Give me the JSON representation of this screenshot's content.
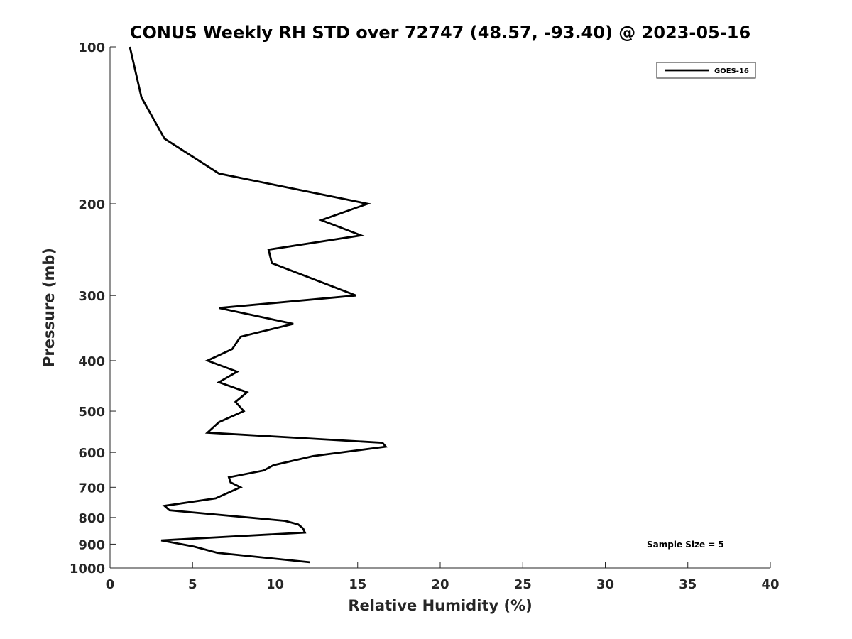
{
  "chart_data": {
    "type": "line",
    "title": "CONUS Weekly RH STD over 72747 (48.57, -93.40) @ 2023-05-16",
    "xlabel": "Relative Humidity (%)",
    "ylabel": "Pressure (mb)",
    "xlim": [
      0,
      40
    ],
    "ylim": [
      100,
      1000
    ],
    "y_scale": "log",
    "y_reversed": true,
    "x_ticks": [
      0,
      5,
      10,
      15,
      20,
      25,
      30,
      35,
      40
    ],
    "y_ticks": [
      100,
      200,
      300,
      400,
      500,
      600,
      700,
      800,
      900,
      1000
    ],
    "grid": false,
    "legend_position": "top-right",
    "annotation": "Sample Size = 5",
    "series": [
      {
        "name": "GOES-16",
        "color": "#000000",
        "points": [
          [
            1.2,
            100
          ],
          [
            1.9,
            125
          ],
          [
            3.3,
            150
          ],
          [
            6.6,
            175
          ],
          [
            15.6,
            200
          ],
          [
            12.8,
            215
          ],
          [
            15.2,
            230
          ],
          [
            9.6,
            245
          ],
          [
            9.8,
            260
          ],
          [
            14.9,
            300
          ],
          [
            6.6,
            317
          ],
          [
            11.1,
            340
          ],
          [
            7.9,
            360
          ],
          [
            7.4,
            380
          ],
          [
            5.9,
            400
          ],
          [
            7.7,
            420
          ],
          [
            6.6,
            440
          ],
          [
            8.3,
            460
          ],
          [
            7.6,
            480
          ],
          [
            8.1,
            500
          ],
          [
            6.6,
            525
          ],
          [
            5.9,
            550
          ],
          [
            16.5,
            575
          ],
          [
            16.7,
            585
          ],
          [
            12.3,
            610
          ],
          [
            9.9,
            635
          ],
          [
            9.3,
            650
          ],
          [
            7.2,
            670
          ],
          [
            7.3,
            685
          ],
          [
            7.9,
            700
          ],
          [
            6.4,
            735
          ],
          [
            3.3,
            760
          ],
          [
            3.6,
            775
          ],
          [
            10.6,
            812
          ],
          [
            11.4,
            825
          ],
          [
            11.7,
            840
          ],
          [
            11.8,
            855
          ],
          [
            3.1,
            885
          ],
          [
            5.1,
            910
          ],
          [
            6.5,
            935
          ],
          [
            12.1,
            975
          ]
        ]
      }
    ]
  }
}
